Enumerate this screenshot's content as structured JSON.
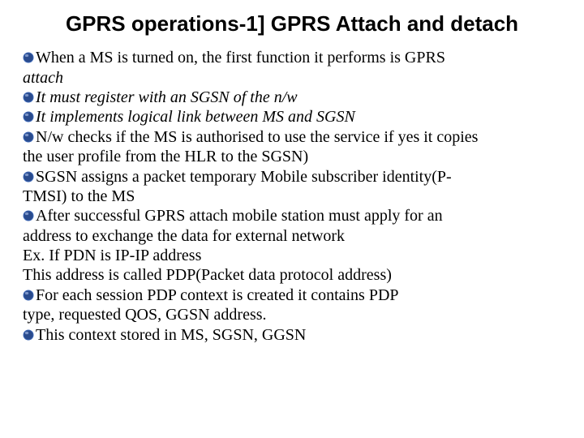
{
  "title": "GPRS operations-1] GPRS Attach and detach",
  "bullet_colors": {
    "fill": "#2a4b8d",
    "stroke": "#3b66b5",
    "highlight": "#90a8d8"
  },
  "lines": [
    {
      "bullet": true,
      "italic": false,
      "text": "When a MS is turned on, the first function it performs is GPRS"
    },
    {
      "bullet": false,
      "italic": true,
      "text": "attach"
    },
    {
      "bullet": true,
      "italic": true,
      "text": "It must register with an SGSN of the n/w"
    },
    {
      "bullet": true,
      "italic": true,
      "text": "It implements logical link between MS and SGSN"
    },
    {
      "bullet": true,
      "italic": false,
      "text": "N/w checks if the MS is authorised to use the service if yes it copies"
    },
    {
      "bullet": false,
      "italic": false,
      "text": "the user profile from the HLR to the SGSN)"
    },
    {
      "bullet": true,
      "italic": false,
      "text": "SGSN assigns a packet temporary Mobile subscriber identity(P-"
    },
    {
      "bullet": false,
      "italic": false,
      "text": "TMSI) to the MS"
    },
    {
      "bullet": true,
      "italic": false,
      "text": "After successful GPRS attach mobile station must apply for an"
    },
    {
      "bullet": false,
      "italic": false,
      "text": "address to exchange the data for external network"
    },
    {
      "bullet": false,
      "italic": false,
      "text": "Ex. If PDN is IP-IP address"
    },
    {
      "bullet": false,
      "italic": false,
      "text": "This address is called PDP(Packet data protocol address)"
    },
    {
      "bullet": true,
      "italic": false,
      "text": "For each session PDP context is created it contains PDP"
    },
    {
      "bullet": false,
      "italic": false,
      "text": "type, requested QOS, GGSN address."
    },
    {
      "bullet": true,
      "italic": false,
      "text": "This context stored in MS, SGSN, GGSN"
    }
  ]
}
